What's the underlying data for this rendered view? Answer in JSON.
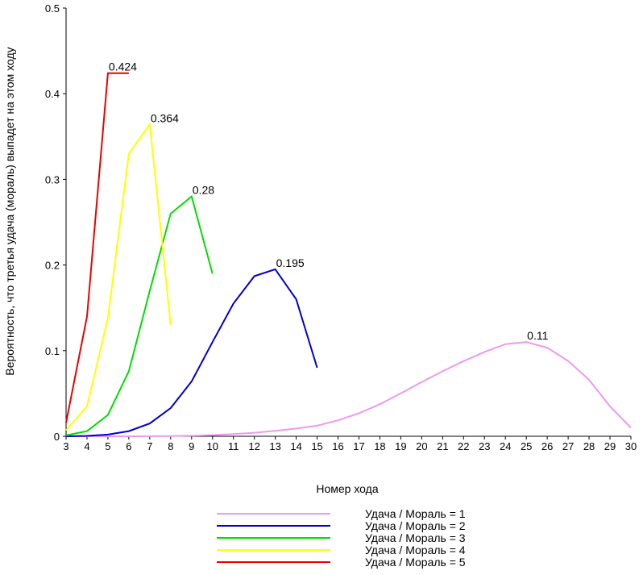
{
  "chart_data": {
    "type": "line",
    "title": "",
    "xlabel": "Номер хода",
    "ylabel": "Вероятность, что третья удача (мораль) выпадет на этом ходу",
    "xlim": [
      3,
      30
    ],
    "ylim": [
      0,
      0.5
    ],
    "x_ticks": [
      "3",
      "4",
      "5",
      "6",
      "7",
      "8",
      "9",
      "10",
      "11",
      "12",
      "13",
      "14",
      "15",
      "16",
      "17",
      "18",
      "19",
      "20",
      "21",
      "22",
      "23",
      "24",
      "25",
      "26",
      "27",
      "28",
      "29",
      "30"
    ],
    "y_ticks": [
      "0",
      "0.1",
      "0.2",
      "0.3",
      "0.4",
      "0.5"
    ],
    "y_tick_values": [
      0,
      0.1,
      0.2,
      0.3,
      0.4,
      0.5
    ],
    "grid": false,
    "legend_position": "bottom",
    "series": [
      {
        "name": "Удача / Мораль = 1",
        "color": "#ee99ee",
        "x": [
          3,
          4,
          5,
          6,
          7,
          8,
          9,
          10,
          11,
          12,
          13,
          14,
          15,
          16,
          17,
          18,
          19,
          20,
          21,
          22,
          23,
          24,
          25,
          26,
          27,
          28,
          29,
          30
        ],
        "y": [
          0.0,
          0.0,
          0.0,
          0.0,
          0.0001,
          0.0003,
          0.0007,
          0.0014,
          0.0025,
          0.0041,
          0.0063,
          0.009,
          0.0124,
          0.0186,
          0.0269,
          0.0375,
          0.0502,
          0.0634,
          0.0759,
          0.0878,
          0.0985,
          0.1075,
          0.11,
          0.1035,
          0.088,
          0.066,
          0.035,
          0.01
        ],
        "peak_label": "0.11",
        "peak_x": 25,
        "peak_y": 0.11
      },
      {
        "name": "Удача / Мораль = 2",
        "color": "#0000cc",
        "x": [
          3,
          4,
          5,
          6,
          7,
          8,
          9,
          10,
          11,
          12,
          13,
          14,
          15
        ],
        "y": [
          0.0,
          0.0005,
          0.002,
          0.006,
          0.015,
          0.033,
          0.064,
          0.11,
          0.155,
          0.187,
          0.195,
          0.16,
          0.08
        ],
        "peak_label": "0.195",
        "peak_x": 13,
        "peak_y": 0.195
      },
      {
        "name": "Удача / Мораль = 3",
        "color": "#00dd00",
        "x": [
          3,
          4,
          5,
          6,
          7,
          8,
          9,
          10
        ],
        "y": [
          0.001,
          0.006,
          0.025,
          0.076,
          0.17,
          0.26,
          0.28,
          0.19
        ],
        "peak_label": "0.28",
        "peak_x": 9,
        "peak_y": 0.28
      },
      {
        "name": "Удача / Мораль = 4",
        "color": "#ffff00",
        "x": [
          3,
          4,
          5,
          6,
          7,
          8
        ],
        "y": [
          0.007,
          0.035,
          0.138,
          0.33,
          0.364,
          0.13
        ],
        "peak_label": "0.364",
        "peak_x": 7,
        "peak_y": 0.364
      },
      {
        "name": "Удача / Мораль = 5",
        "color": "#ee0000",
        "x": [
          3,
          4,
          5,
          6
        ],
        "y": [
          0.016,
          0.14,
          0.424,
          0.424
        ],
        "peak_label": "0.424",
        "peak_x": 5,
        "peak_y": 0.424
      }
    ]
  }
}
